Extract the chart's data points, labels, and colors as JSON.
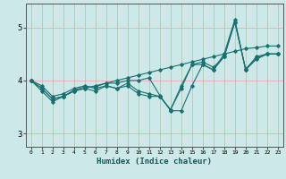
{
  "title": "",
  "xlabel": "Humidex (Indice chaleur)",
  "bg_color": "#cce8e8",
  "line_color": "#1a7070",
  "grid_color": "#ff9999",
  "xlim": [
    -0.5,
    23.5
  ],
  "ylim": [
    2.75,
    5.45
  ],
  "yticks": [
    3,
    4,
    5
  ],
  "xticks": [
    0,
    1,
    2,
    3,
    4,
    5,
    6,
    7,
    8,
    9,
    10,
    11,
    12,
    13,
    14,
    15,
    16,
    17,
    18,
    19,
    20,
    21,
    22,
    23
  ],
  "series": [
    [
      4.0,
      3.9,
      3.7,
      3.75,
      3.85,
      3.9,
      3.85,
      3.9,
      3.85,
      3.9,
      3.75,
      3.7,
      3.7,
      3.45,
      3.85,
      4.3,
      4.35,
      4.25,
      4.45,
      5.1,
      4.2,
      4.45,
      4.5,
      4.5
    ],
    [
      4.0,
      3.8,
      3.6,
      3.7,
      3.8,
      3.85,
      3.8,
      3.9,
      3.85,
      3.95,
      3.8,
      3.75,
      3.7,
      3.45,
      3.9,
      4.3,
      4.3,
      4.2,
      4.5,
      5.15,
      4.2,
      4.4,
      4.5,
      4.5
    ],
    [
      4.0,
      3.85,
      3.65,
      3.7,
      3.8,
      3.85,
      3.9,
      3.95,
      4.0,
      4.05,
      4.1,
      4.15,
      4.2,
      4.25,
      4.3,
      4.35,
      4.4,
      4.45,
      4.5,
      4.55,
      4.6,
      4.62,
      4.65,
      4.65
    ],
    [
      4.0,
      3.85,
      3.65,
      3.7,
      3.82,
      3.88,
      3.88,
      3.95,
      3.95,
      4.0,
      4.0,
      4.05,
      3.72,
      3.43,
      3.43,
      3.9,
      4.3,
      4.2,
      4.45,
      5.1,
      4.22,
      4.42,
      4.5,
      4.5
    ]
  ]
}
